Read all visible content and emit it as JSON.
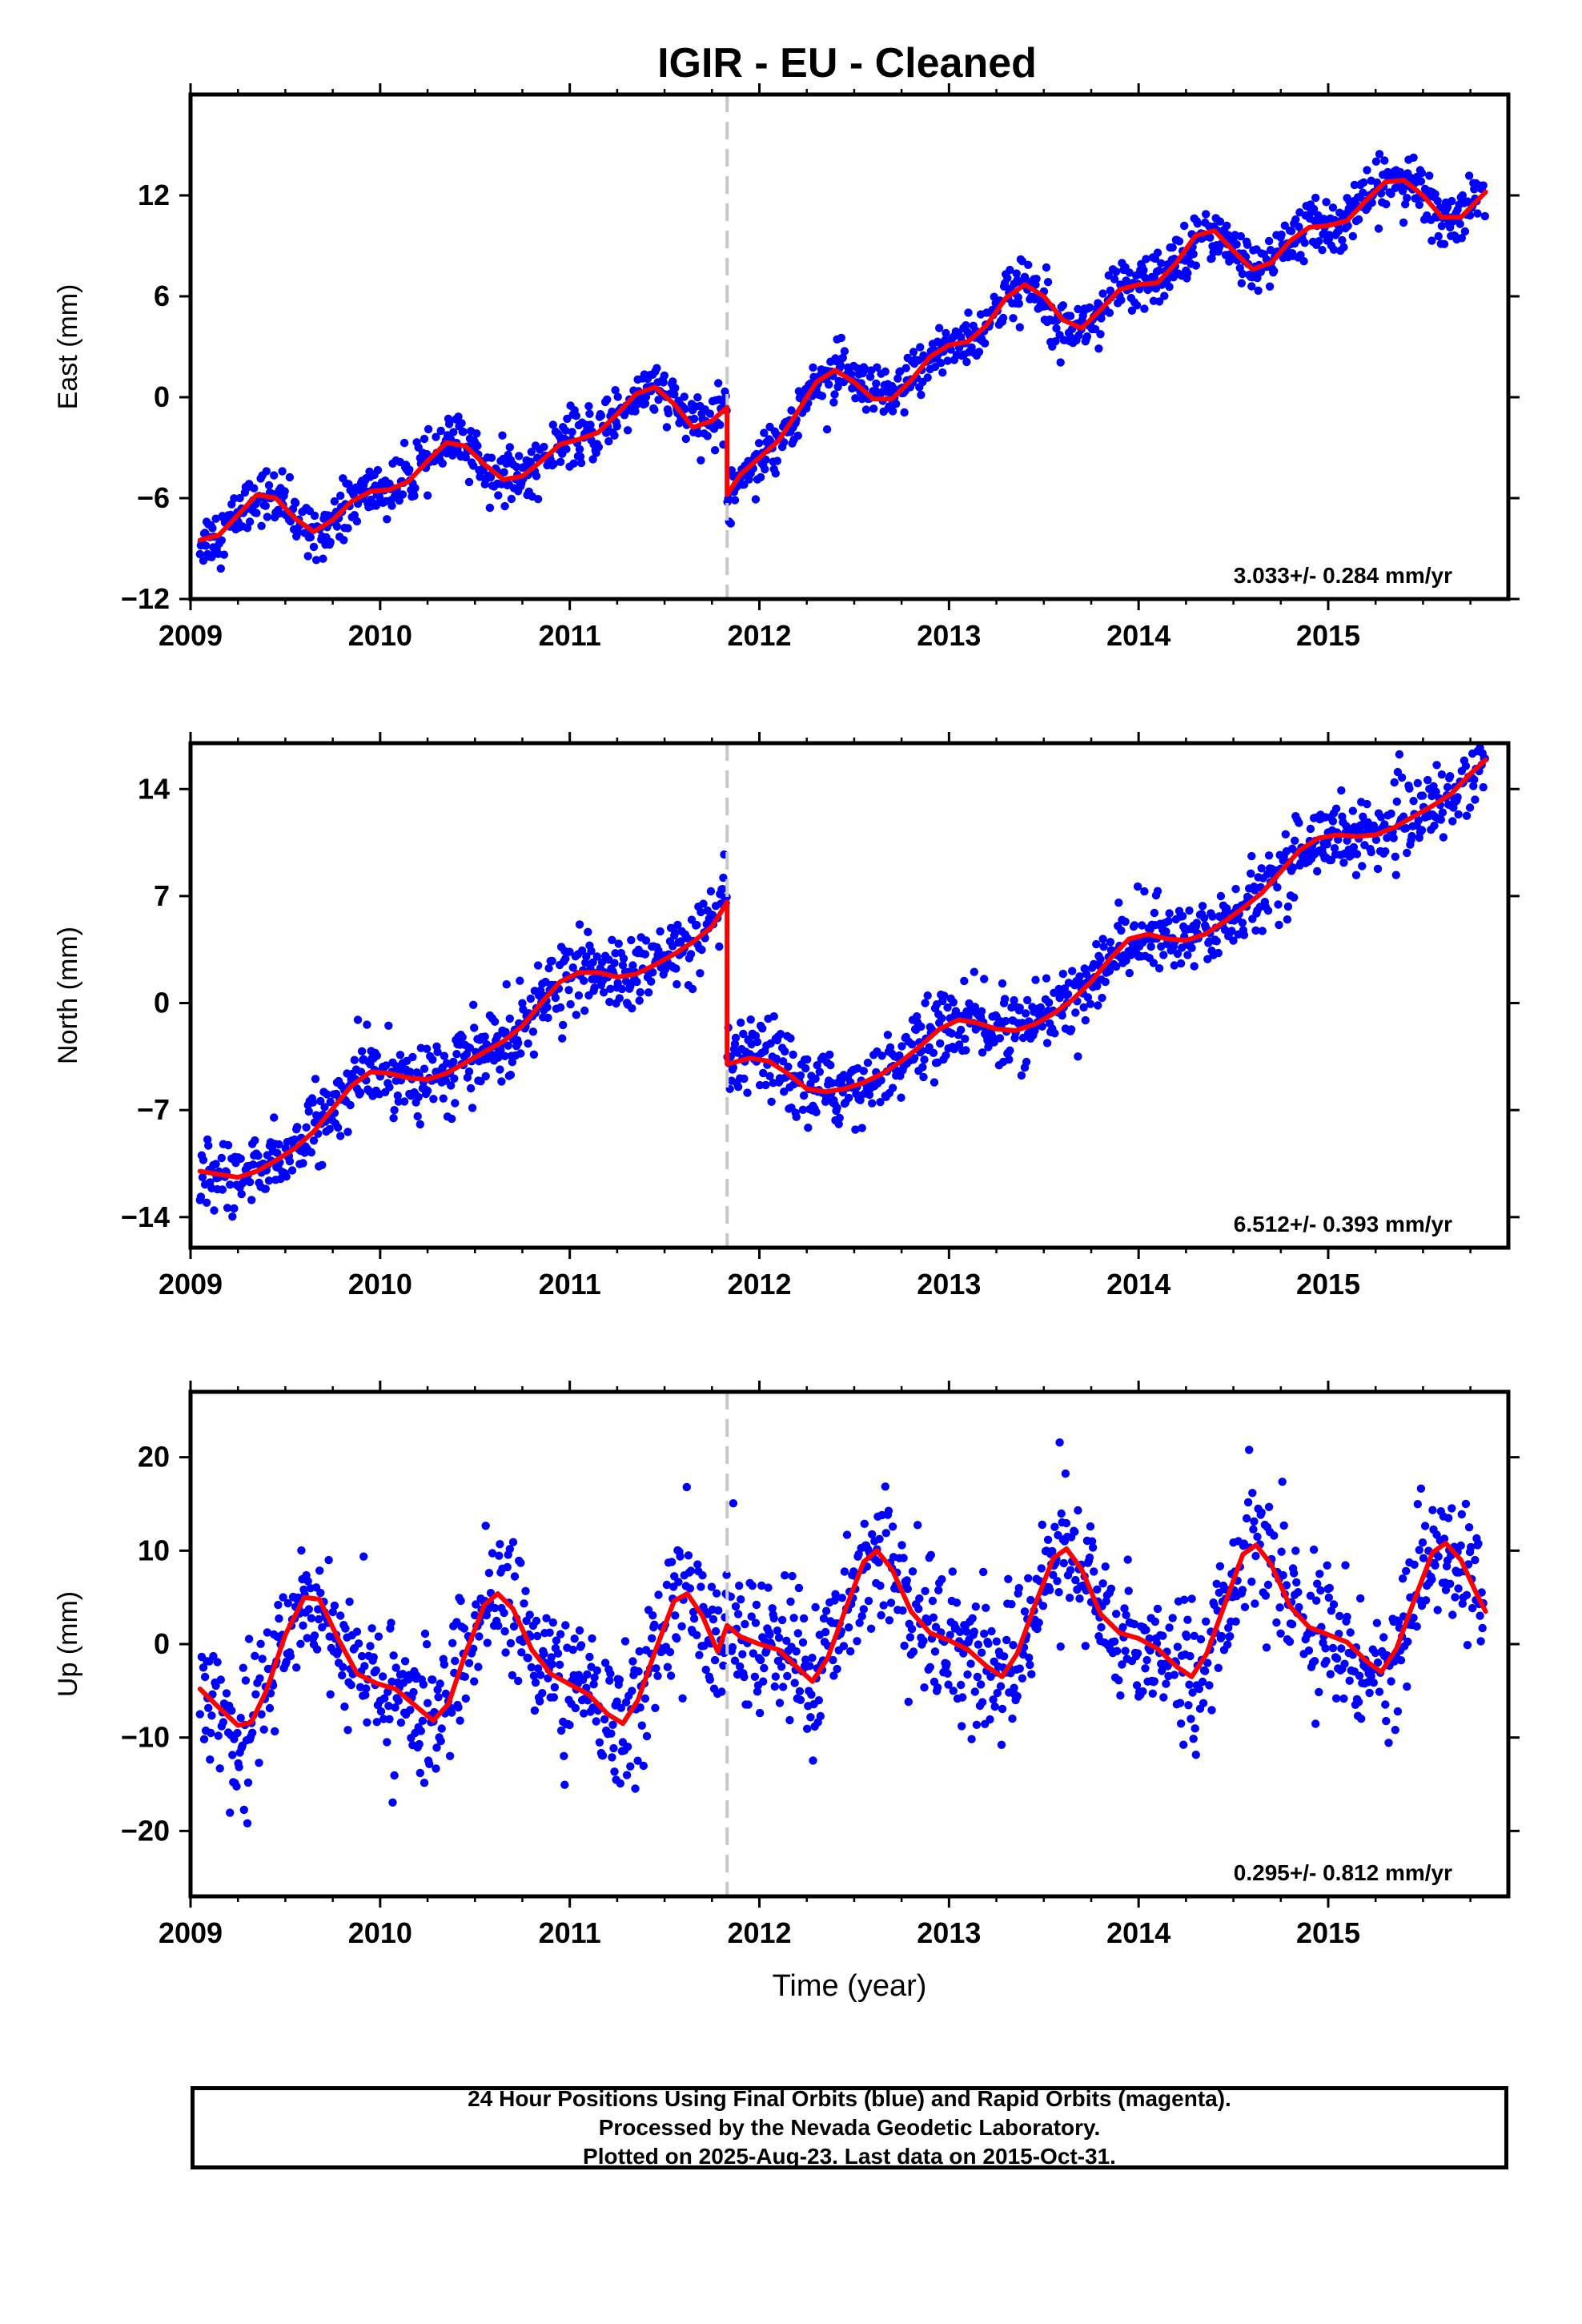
{
  "title": "IGIR  - EU - Cleaned",
  "footer": {
    "line1": "24 Hour Positions Using Final Orbits (blue) and Rapid Orbits (magenta).",
    "line2": "Processed by the Nevada Geodetic Laboratory.",
    "line3": "Plotted on 2025-Aug-23. Last data on 2015-Oct-31."
  },
  "colors": {
    "points": "#0000ff",
    "fit": "#ff0000",
    "break_line": "#c8c8c8",
    "axes": "#000000"
  },
  "chart_data": [
    {
      "type": "scatter",
      "ylabel": "East (mm)",
      "xlabel": "",
      "xlim": [
        2009.0,
        2015.95
      ],
      "ylim": [
        -12,
        18
      ],
      "xticks": [
        2009,
        2010,
        2011,
        2012,
        2013,
        2014,
        2015
      ],
      "yticks": [
        -12,
        -6,
        0,
        6,
        12
      ],
      "rate_label": "3.033+/- 0.284 mm/yr",
      "break_year": 2011.83,
      "data_span": [
        2009.05,
        2015.83
      ],
      "fit_series": {
        "name": "",
        "points": [
          [
            2009.05,
            -8.5
          ],
          [
            2009.15,
            -8.2
          ],
          [
            2009.25,
            -7.0
          ],
          [
            2009.35,
            -5.8
          ],
          [
            2009.45,
            -6.0
          ],
          [
            2009.55,
            -7.2
          ],
          [
            2009.65,
            -8.0
          ],
          [
            2009.75,
            -7.3
          ],
          [
            2009.85,
            -6.2
          ],
          [
            2009.95,
            -5.6
          ],
          [
            2010.05,
            -5.5
          ],
          [
            2010.15,
            -5.0
          ],
          [
            2010.25,
            -3.8
          ],
          [
            2010.35,
            -2.7
          ],
          [
            2010.45,
            -2.9
          ],
          [
            2010.55,
            -4.0
          ],
          [
            2010.65,
            -4.9
          ],
          [
            2010.75,
            -4.7
          ],
          [
            2010.85,
            -3.8
          ],
          [
            2010.95,
            -2.8
          ],
          [
            2011.05,
            -2.5
          ],
          [
            2011.15,
            -2.1
          ],
          [
            2011.25,
            -1.0
          ],
          [
            2011.35,
            0.2
          ],
          [
            2011.45,
            0.6
          ],
          [
            2011.55,
            -0.4
          ],
          [
            2011.65,
            -1.8
          ],
          [
            2011.75,
            -1.4
          ],
          [
            2011.83,
            -0.6
          ],
          [
            2011.83,
            -5.8
          ],
          [
            2011.9,
            -4.6
          ],
          [
            2012.0,
            -3.6
          ],
          [
            2012.1,
            -2.6
          ],
          [
            2012.2,
            -0.9
          ],
          [
            2012.3,
            0.9
          ],
          [
            2012.4,
            1.6
          ],
          [
            2012.5,
            0.9
          ],
          [
            2012.6,
            -0.1
          ],
          [
            2012.7,
            -0.1
          ],
          [
            2012.8,
            1.0
          ],
          [
            2012.9,
            2.4
          ],
          [
            2013.0,
            3.1
          ],
          [
            2013.1,
            3.3
          ],
          [
            2013.2,
            4.3
          ],
          [
            2013.3,
            5.9
          ],
          [
            2013.4,
            6.7
          ],
          [
            2013.5,
            6.0
          ],
          [
            2013.6,
            4.6
          ],
          [
            2013.7,
            4.1
          ],
          [
            2013.8,
            5.2
          ],
          [
            2013.9,
            6.4
          ],
          [
            2014.0,
            6.7
          ],
          [
            2014.1,
            6.8
          ],
          [
            2014.2,
            8.0
          ],
          [
            2014.3,
            9.6
          ],
          [
            2014.4,
            9.9
          ],
          [
            2014.5,
            8.7
          ],
          [
            2014.6,
            7.6
          ],
          [
            2014.7,
            8.0
          ],
          [
            2014.8,
            9.3
          ],
          [
            2014.9,
            10.1
          ],
          [
            2015.0,
            10.2
          ],
          [
            2015.1,
            10.5
          ],
          [
            2015.2,
            11.7
          ],
          [
            2015.3,
            12.8
          ],
          [
            2015.4,
            12.9
          ],
          [
            2015.5,
            12.0
          ],
          [
            2015.6,
            10.7
          ],
          [
            2015.7,
            10.7
          ],
          [
            2015.83,
            12.2
          ]
        ]
      }
    },
    {
      "type": "scatter",
      "ylabel": "North (mm)",
      "xlabel": "",
      "xlim": [
        2009.0,
        2015.95
      ],
      "ylim": [
        -16,
        17
      ],
      "xticks": [
        2009,
        2010,
        2011,
        2012,
        2013,
        2014,
        2015
      ],
      "yticks": [
        -14,
        -7,
        0,
        7,
        14
      ],
      "rate_label": "6.512+/- 0.393 mm/yr",
      "break_year": 2011.83,
      "data_span": [
        2009.05,
        2015.83
      ],
      "fit_series": {
        "name": "",
        "points": [
          [
            2009.05,
            -11.0
          ],
          [
            2009.15,
            -11.2
          ],
          [
            2009.25,
            -11.4
          ],
          [
            2009.35,
            -11.0
          ],
          [
            2009.45,
            -10.3
          ],
          [
            2009.55,
            -9.5
          ],
          [
            2009.65,
            -8.4
          ],
          [
            2009.75,
            -6.9
          ],
          [
            2009.85,
            -5.4
          ],
          [
            2009.95,
            -4.5
          ],
          [
            2010.05,
            -4.6
          ],
          [
            2010.15,
            -4.9
          ],
          [
            2010.25,
            -5.0
          ],
          [
            2010.35,
            -4.6
          ],
          [
            2010.45,
            -3.9
          ],
          [
            2010.55,
            -3.2
          ],
          [
            2010.65,
            -2.5
          ],
          [
            2010.75,
            -1.5
          ],
          [
            2010.85,
            0.0
          ],
          [
            2010.95,
            1.4
          ],
          [
            2011.05,
            2.0
          ],
          [
            2011.15,
            2.0
          ],
          [
            2011.25,
            1.7
          ],
          [
            2011.35,
            1.9
          ],
          [
            2011.45,
            2.5
          ],
          [
            2011.55,
            3.2
          ],
          [
            2011.65,
            4.0
          ],
          [
            2011.75,
            5.0
          ],
          [
            2011.83,
            6.6
          ],
          [
            2011.83,
            -4.0
          ],
          [
            2011.95,
            -3.6
          ],
          [
            2012.05,
            -3.8
          ],
          [
            2012.15,
            -4.6
          ],
          [
            2012.25,
            -5.6
          ],
          [
            2012.35,
            -5.8
          ],
          [
            2012.45,
            -5.6
          ],
          [
            2012.55,
            -5.2
          ],
          [
            2012.65,
            -4.6
          ],
          [
            2012.75,
            -3.8
          ],
          [
            2012.85,
            -2.8
          ],
          [
            2012.95,
            -1.7
          ],
          [
            2013.05,
            -1.1
          ],
          [
            2013.15,
            -1.3
          ],
          [
            2013.25,
            -1.7
          ],
          [
            2013.35,
            -1.8
          ],
          [
            2013.45,
            -1.4
          ],
          [
            2013.55,
            -0.7
          ],
          [
            2013.65,
            0.2
          ],
          [
            2013.75,
            1.4
          ],
          [
            2013.85,
            2.9
          ],
          [
            2013.95,
            4.2
          ],
          [
            2014.05,
            4.5
          ],
          [
            2014.15,
            4.2
          ],
          [
            2014.25,
            4.1
          ],
          [
            2014.35,
            4.5
          ],
          [
            2014.45,
            5.3
          ],
          [
            2014.55,
            6.2
          ],
          [
            2014.65,
            7.2
          ],
          [
            2014.75,
            8.6
          ],
          [
            2014.85,
            10.0
          ],
          [
            2014.95,
            10.8
          ],
          [
            2015.05,
            11.0
          ],
          [
            2015.15,
            10.9
          ],
          [
            2015.25,
            11.0
          ],
          [
            2015.35,
            11.5
          ],
          [
            2015.45,
            12.2
          ],
          [
            2015.55,
            12.9
          ],
          [
            2015.65,
            13.7
          ],
          [
            2015.75,
            15.0
          ],
          [
            2015.83,
            15.9
          ]
        ]
      }
    },
    {
      "type": "scatter",
      "ylabel": "Up (mm)",
      "xlabel": "Time (year)",
      "xlim": [
        2009.0,
        2015.95
      ],
      "ylim": [
        -27,
        27
      ],
      "xticks": [
        2009,
        2010,
        2011,
        2012,
        2013,
        2014,
        2015
      ],
      "yticks": [
        -20,
        -10,
        0,
        10,
        20
      ],
      "rate_label": "0.295+/- 0.812 mm/yr",
      "break_year": 2011.83,
      "data_span": [
        2009.05,
        2015.83
      ],
      "fit_series": {
        "name": "",
        "points": [
          [
            2009.05,
            -4.8
          ],
          [
            2009.15,
            -6.8
          ],
          [
            2009.25,
            -8.7
          ],
          [
            2009.32,
            -8.4
          ],
          [
            2009.4,
            -5.0
          ],
          [
            2009.5,
            1.0
          ],
          [
            2009.6,
            5.0
          ],
          [
            2009.68,
            4.8
          ],
          [
            2009.78,
            0.5
          ],
          [
            2009.88,
            -3.2
          ],
          [
            2009.98,
            -4.2
          ],
          [
            2010.08,
            -4.8
          ],
          [
            2010.18,
            -6.5
          ],
          [
            2010.28,
            -8.2
          ],
          [
            2010.36,
            -6.4
          ],
          [
            2010.45,
            -1.0
          ],
          [
            2010.55,
            4.2
          ],
          [
            2010.62,
            5.4
          ],
          [
            2010.7,
            3.8
          ],
          [
            2010.8,
            -0.6
          ],
          [
            2010.9,
            -3.2
          ],
          [
            2011.0,
            -4.3
          ],
          [
            2011.1,
            -5.4
          ],
          [
            2011.2,
            -7.5
          ],
          [
            2011.28,
            -8.5
          ],
          [
            2011.36,
            -6.0
          ],
          [
            2011.45,
            -0.8
          ],
          [
            2011.55,
            4.6
          ],
          [
            2011.62,
            5.4
          ],
          [
            2011.7,
            3.0
          ],
          [
            2011.78,
            -0.8
          ],
          [
            2011.83,
            2.0
          ],
          [
            2011.9,
            0.8
          ],
          [
            2012.0,
            0.0
          ],
          [
            2012.1,
            -0.6
          ],
          [
            2012.2,
            -2.5
          ],
          [
            2012.28,
            -4.0
          ],
          [
            2012.36,
            -1.5
          ],
          [
            2012.45,
            3.5
          ],
          [
            2012.55,
            8.8
          ],
          [
            2012.62,
            10.0
          ],
          [
            2012.7,
            8.0
          ],
          [
            2012.8,
            3.5
          ],
          [
            2012.9,
            1.2
          ],
          [
            2013.0,
            0.4
          ],
          [
            2013.1,
            -0.6
          ],
          [
            2013.2,
            -2.4
          ],
          [
            2013.28,
            -3.5
          ],
          [
            2013.36,
            -1.0
          ],
          [
            2013.45,
            4.0
          ],
          [
            2013.55,
            9.2
          ],
          [
            2013.62,
            10.2
          ],
          [
            2013.7,
            8.0
          ],
          [
            2013.8,
            3.2
          ],
          [
            2013.9,
            1.2
          ],
          [
            2014.0,
            0.6
          ],
          [
            2014.1,
            -0.5
          ],
          [
            2014.2,
            -2.4
          ],
          [
            2014.28,
            -3.5
          ],
          [
            2014.36,
            -1.0
          ],
          [
            2014.45,
            4.0
          ],
          [
            2014.55,
            9.6
          ],
          [
            2014.62,
            10.6
          ],
          [
            2014.7,
            8.5
          ],
          [
            2014.8,
            4.0
          ],
          [
            2014.9,
            1.8
          ],
          [
            2015.0,
            1.0
          ],
          [
            2015.1,
            0.2
          ],
          [
            2015.2,
            -1.8
          ],
          [
            2015.28,
            -3.0
          ],
          [
            2015.36,
            -0.5
          ],
          [
            2015.45,
            4.5
          ],
          [
            2015.55,
            9.8
          ],
          [
            2015.62,
            10.8
          ],
          [
            2015.7,
            9.0
          ],
          [
            2015.78,
            5.5
          ],
          [
            2015.83,
            3.5
          ]
        ]
      }
    }
  ]
}
